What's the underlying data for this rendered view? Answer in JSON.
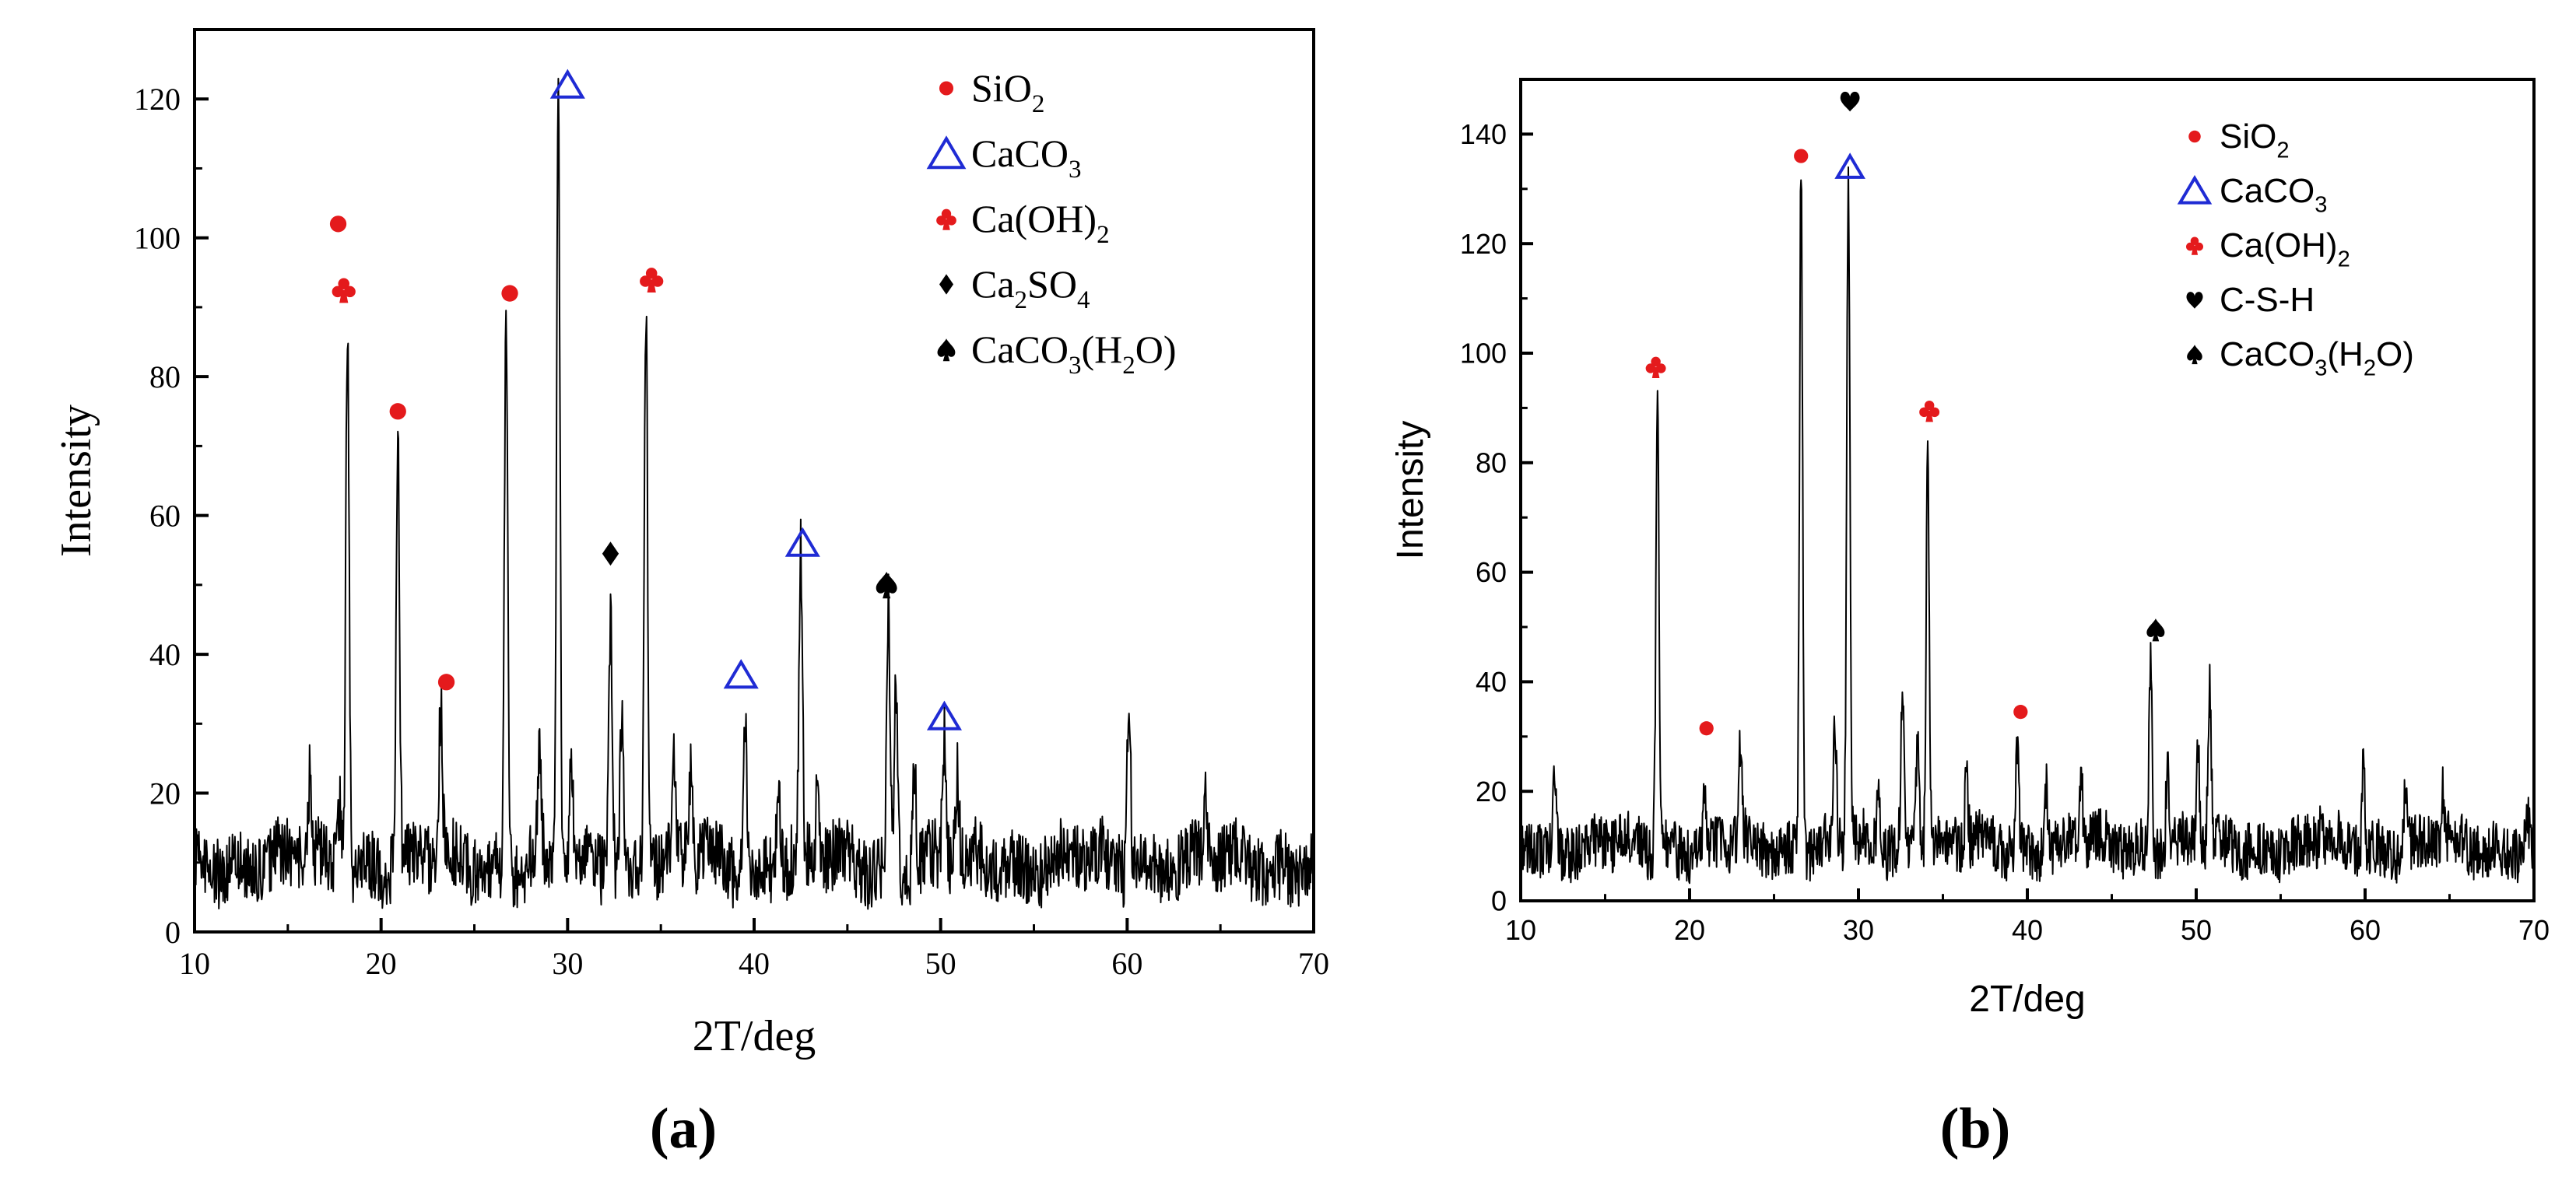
{
  "chart_data": [
    {
      "type": "line",
      "panel_label": "(a)",
      "xlabel": "2T/deg",
      "ylabel": "Intensity",
      "xlim": [
        10,
        70
      ],
      "ylim": [
        0,
        130
      ],
      "xticks": [
        10,
        20,
        30,
        40,
        50,
        60,
        70
      ],
      "yticks": [
        0,
        20,
        40,
        60,
        80,
        100,
        120
      ],
      "grid": false,
      "legend_position": "top-right",
      "legend": [
        {
          "marker": "dot",
          "color": "#e41a1c",
          "text": "SiO",
          "sub": "2",
          "tail": ""
        },
        {
          "marker": "triangle",
          "color": "#1f2bd4",
          "text": "CaCO",
          "sub": "3",
          "tail": ""
        },
        {
          "marker": "club",
          "color": "#e41a1c",
          "text": "Ca(OH)",
          "sub": "2",
          "tail": ""
        },
        {
          "marker": "diamond",
          "color": "#000000",
          "text": "Ca",
          "sub": "2",
          "tail": "SO",
          "sub2": "4"
        },
        {
          "marker": "spade",
          "color": "#000000",
          "text": "CaCO",
          "sub": "3",
          "tail": "(H",
          "sub2": "2",
          "tail2": "O)"
        }
      ],
      "baseline": 10,
      "noise": 3,
      "peaks": [
        {
          "x": 16.2,
          "y": 22
        },
        {
          "x": 17.8,
          "y": 19
        },
        {
          "x": 18.2,
          "y": 89
        },
        {
          "x": 20.9,
          "y": 72
        },
        {
          "x": 23.2,
          "y": 32
        },
        {
          "x": 26.7,
          "y": 90
        },
        {
          "x": 28.5,
          "y": 25
        },
        {
          "x": 29.5,
          "y": 120
        },
        {
          "x": 30.2,
          "y": 22
        },
        {
          "x": 32.3,
          "y": 47
        },
        {
          "x": 32.9,
          "y": 33
        },
        {
          "x": 34.2,
          "y": 92
        },
        {
          "x": 35.7,
          "y": 24
        },
        {
          "x": 36.6,
          "y": 22
        },
        {
          "x": 39.5,
          "y": 33
        },
        {
          "x": 41.3,
          "y": 22
        },
        {
          "x": 42.5,
          "y": 53
        },
        {
          "x": 43.4,
          "y": 20
        },
        {
          "x": 47.2,
          "y": 47
        },
        {
          "x": 47.6,
          "y": 36
        },
        {
          "x": 48.6,
          "y": 24
        },
        {
          "x": 50.2,
          "y": 28
        },
        {
          "x": 50.9,
          "y": 22
        },
        {
          "x": 60.1,
          "y": 37
        },
        {
          "x": 64.2,
          "y": 22
        }
      ],
      "markers": [
        {
          "x": 17.7,
          "y": 102,
          "shape": "dot",
          "color": "#e41a1c"
        },
        {
          "x": 18.0,
          "y": 92.5,
          "shape": "club",
          "color": "#e41a1c"
        },
        {
          "x": 20.9,
          "y": 75,
          "shape": "dot",
          "color": "#e41a1c"
        },
        {
          "x": 23.5,
          "y": 36,
          "shape": "dot",
          "color": "#e41a1c"
        },
        {
          "x": 26.9,
          "y": 92,
          "shape": "dot",
          "color": "#e41a1c"
        },
        {
          "x": 30.0,
          "y": 122,
          "shape": "triangle",
          "color": "#1f2bd4"
        },
        {
          "x": 32.3,
          "y": 54.5,
          "shape": "diamond",
          "color": "#000000"
        },
        {
          "x": 34.5,
          "y": 94,
          "shape": "club",
          "color": "#e41a1c"
        },
        {
          "x": 39.3,
          "y": 37,
          "shape": "triangle",
          "color": "#1f2bd4"
        },
        {
          "x": 42.6,
          "y": 56,
          "shape": "triangle",
          "color": "#1f2bd4"
        },
        {
          "x": 47.1,
          "y": 50,
          "shape": "spade",
          "color": "#000000"
        },
        {
          "x": 50.2,
          "y": 31,
          "shape": "triangle",
          "color": "#1f2bd4"
        }
      ]
    },
    {
      "type": "line",
      "panel_label": "(b)",
      "xlabel": "2T/deg",
      "ylabel": "Intensity",
      "xlim": [
        10,
        70
      ],
      "ylim": [
        0,
        150
      ],
      "xticks": [
        10,
        20,
        30,
        40,
        50,
        60,
        70
      ],
      "yticks": [
        0,
        20,
        40,
        60,
        80,
        100,
        120,
        140
      ],
      "grid": false,
      "legend_position": "top-right",
      "legend": [
        {
          "marker": "dot",
          "color": "#e41a1c",
          "text": "SiO",
          "sub": "2",
          "tail": ""
        },
        {
          "marker": "triangle",
          "color": "#1f2bd4",
          "text": "CaCO",
          "sub": "3",
          "tail": ""
        },
        {
          "marker": "club",
          "color": "#e41a1c",
          "text": "Ca(OH)",
          "sub": "2",
          "tail": ""
        },
        {
          "marker": "heart",
          "color": "#000000",
          "text": "C-S-H",
          "sub": "",
          "tail": ""
        },
        {
          "marker": "spade",
          "color": "#000000",
          "text": "CaCO",
          "sub": "3",
          "tail": "(H",
          "sub2": "2",
          "tail2": "O)"
        }
      ],
      "baseline": 10,
      "noise": 3,
      "peaks": [
        {
          "x": 12.0,
          "y": 22
        },
        {
          "x": 18.1,
          "y": 94
        },
        {
          "x": 20.9,
          "y": 21
        },
        {
          "x": 23.0,
          "y": 26
        },
        {
          "x": 26.6,
          "y": 135
        },
        {
          "x": 28.6,
          "y": 32
        },
        {
          "x": 29.4,
          "y": 133
        },
        {
          "x": 31.2,
          "y": 22
        },
        {
          "x": 32.6,
          "y": 38
        },
        {
          "x": 33.5,
          "y": 32
        },
        {
          "x": 34.1,
          "y": 87
        },
        {
          "x": 36.4,
          "y": 22
        },
        {
          "x": 39.4,
          "y": 30
        },
        {
          "x": 41.1,
          "y": 23
        },
        {
          "x": 43.2,
          "y": 22
        },
        {
          "x": 47.3,
          "y": 45
        },
        {
          "x": 48.3,
          "y": 25
        },
        {
          "x": 50.1,
          "y": 28
        },
        {
          "x": 50.8,
          "y": 38
        },
        {
          "x": 57.4,
          "y": 18
        },
        {
          "x": 59.9,
          "y": 25
        },
        {
          "x": 62.4,
          "y": 22
        },
        {
          "x": 64.6,
          "y": 19
        },
        {
          "x": 69.6,
          "y": 17
        }
      ],
      "markers": [
        {
          "x": 18.0,
          "y": 97.5,
          "shape": "club",
          "color": "#e41a1c"
        },
        {
          "x": 21.0,
          "y": 31.5,
          "shape": "dot",
          "color": "#e41a1c"
        },
        {
          "x": 26.6,
          "y": 136,
          "shape": "dot",
          "color": "#e41a1c"
        },
        {
          "x": 29.5,
          "y": 146,
          "shape": "heart",
          "color": "#000000"
        },
        {
          "x": 29.5,
          "y": 134,
          "shape": "triangle",
          "color": "#1f2bd4"
        },
        {
          "x": 34.2,
          "y": 89.5,
          "shape": "club",
          "color": "#e41a1c"
        },
        {
          "x": 39.6,
          "y": 34.5,
          "shape": "dot",
          "color": "#e41a1c"
        },
        {
          "x": 47.6,
          "y": 49.5,
          "shape": "spade",
          "color": "#000000"
        }
      ]
    }
  ]
}
